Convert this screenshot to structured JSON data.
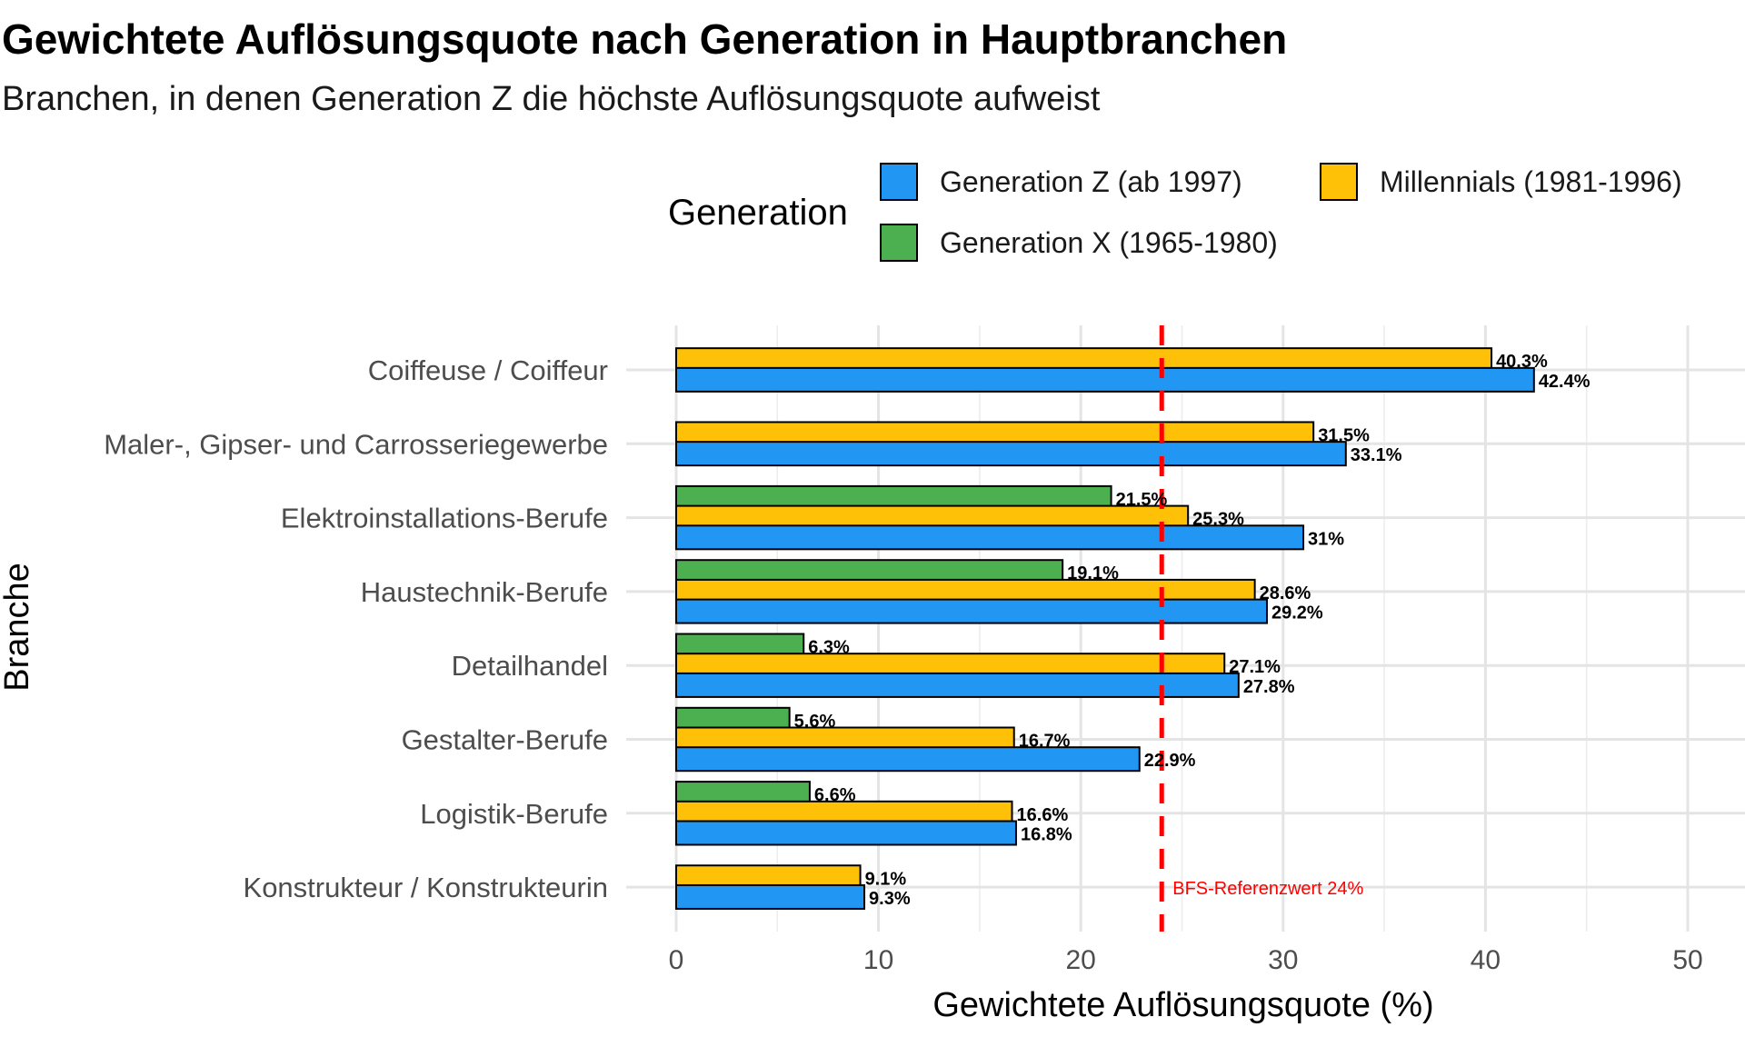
{
  "chart_data": {
    "type": "bar",
    "orientation": "horizontal",
    "title": "Gewichtete Auflösungsquote nach Generation in Hauptbranchen",
    "subtitle": "Branchen, in denen Generation Z die höchste Auflösungsquote aufweist",
    "xlabel": "Gewichtete Auflösungsquote (%)",
    "ylabel": "Branche",
    "xlim": [
      0,
      50
    ],
    "xticks": [
      "0",
      "10",
      "20",
      "30",
      "40",
      "50"
    ],
    "grid": true,
    "legend": {
      "title": "Generation",
      "position": "top",
      "items": [
        {
          "name": "Generation Z (ab 1997)",
          "color": "#2196F3"
        },
        {
          "name": "Millennials (1981-1996)",
          "color": "#FFC107"
        },
        {
          "name": "Generation X (1965-1980)",
          "color": "#4CAF50"
        }
      ]
    },
    "categories": [
      "Coiffeuse / Coiffeur",
      "Maler-, Gipser- und Carrosseriegewerbe",
      "Elektroinstallations-Berufe",
      "Haustechnik-Berufe",
      "Detailhandel",
      "Gestalter-Berufe",
      "Logistik-Berufe",
      "Konstrukteur / Konstrukteurin"
    ],
    "series": [
      {
        "name": "Generation X (1965-1980)",
        "color": "#4CAF50",
        "values": [
          null,
          null,
          21.5,
          19.1,
          6.3,
          5.6,
          6.6,
          null
        ],
        "labels": [
          null,
          null,
          "21.5%",
          "19.1%",
          "6.3%",
          "5.6%",
          "6.6%",
          null
        ]
      },
      {
        "name": "Millennials (1981-1996)",
        "color": "#FFC107",
        "values": [
          40.3,
          31.5,
          25.3,
          28.6,
          27.1,
          16.7,
          16.6,
          9.1
        ],
        "labels": [
          "40.3%",
          "31.5%",
          "25.3%",
          "28.6%",
          "27.1%",
          "16.7%",
          "16.6%",
          "9.1%"
        ]
      },
      {
        "name": "Generation Z (ab 1997)",
        "color": "#2196F3",
        "values": [
          42.4,
          33.1,
          31.0,
          29.2,
          27.8,
          22.9,
          16.8,
          9.3
        ],
        "labels": [
          "42.4%",
          "33.1%",
          "31%",
          "29.2%",
          "27.8%",
          "22.9%",
          "16.8%",
          "9.3%"
        ]
      }
    ],
    "reference_line": {
      "value": 24,
      "label": "BFS-Referenzwert 24%",
      "color": "#ff0000",
      "style": "dashed"
    }
  }
}
